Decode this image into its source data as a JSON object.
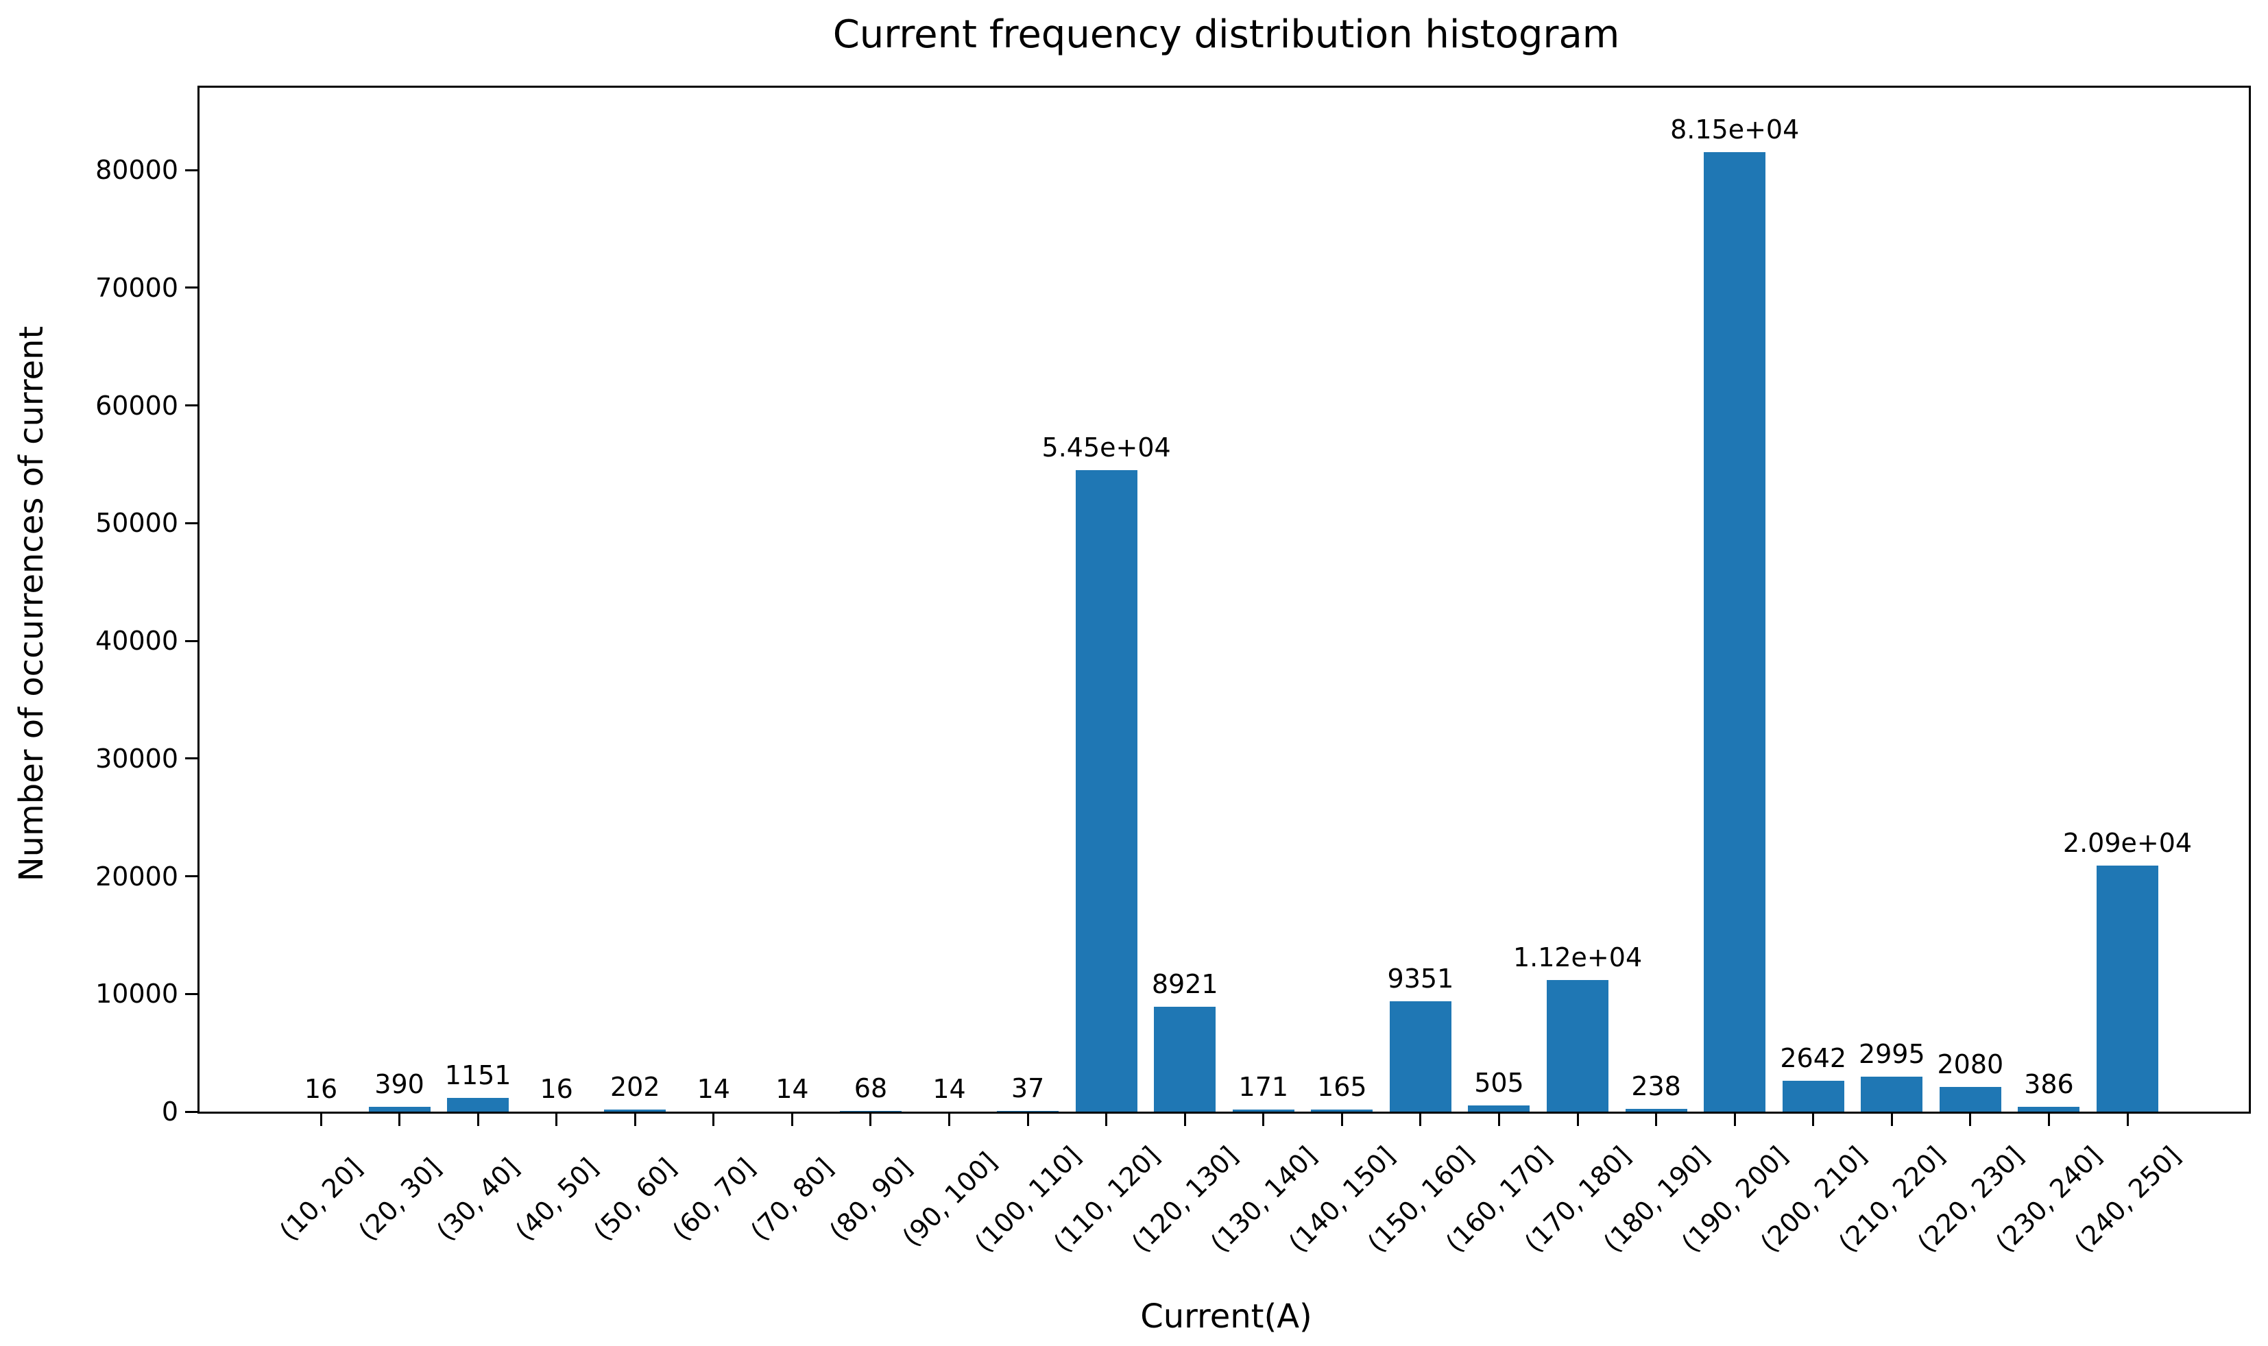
{
  "chart_data": {
    "type": "bar",
    "title": "Current frequency distribution histogram",
    "xlabel": "Current(A)",
    "ylabel": "Number of occurrences of current",
    "categories": [
      "(10, 20]",
      "(20, 30]",
      "(30, 40]",
      "(40, 50]",
      "(50, 60]",
      "(60, 70]",
      "(70, 80]",
      "(80, 90]",
      "(90, 100]",
      "(100, 110]",
      "(110, 120]",
      "(120, 130]",
      "(130, 140]",
      "(140, 150]",
      "(150, 160]",
      "(160, 170]",
      "(170, 180]",
      "(180, 190]",
      "(190, 200]",
      "(200, 210]",
      "(210, 220]",
      "(220, 230]",
      "(230, 240]",
      "(240, 250]"
    ],
    "values": [
      16,
      390,
      1151,
      16,
      202,
      14,
      14,
      68,
      14,
      37,
      54500,
      8921,
      171,
      165,
      9351,
      505,
      11200,
      238,
      81500,
      2642,
      2995,
      2080,
      386,
      20900
    ],
    "bar_value_labels": [
      "16",
      "390",
      "1151",
      "16",
      "202",
      "14",
      "14",
      "68",
      "14",
      "37",
      "5.45e+04",
      "8921",
      "171",
      "165",
      "9351",
      "505",
      "1.12e+04",
      "238",
      "8.15e+04",
      "2642",
      "2995",
      "2080",
      "386",
      "2.09e+04"
    ],
    "yticks": [
      0,
      10000,
      20000,
      30000,
      40000,
      50000,
      60000,
      70000,
      80000
    ],
    "ytick_labels": [
      "0",
      "10000",
      "20000",
      "30000",
      "40000",
      "50000",
      "60000",
      "70000",
      "80000"
    ],
    "ylim": [
      0,
      87000
    ],
    "bar_color": "#1f77b4",
    "axis_color": "#000000",
    "grid": false,
    "legend": null
  }
}
